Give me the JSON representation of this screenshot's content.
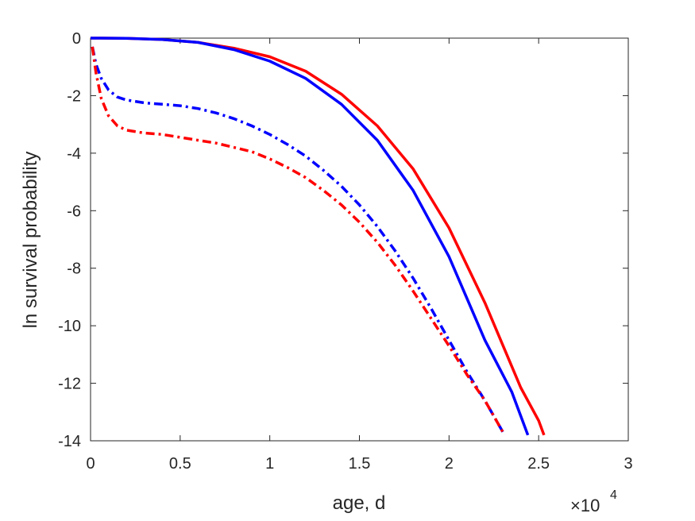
{
  "chart_data": {
    "type": "line",
    "title": "",
    "xlabel": "age, d",
    "ylabel": "ln survival probability",
    "x_multiplier_label": "×10",
    "x_multiplier_exponent": "4",
    "xlim": [
      0,
      30000
    ],
    "ylim": [
      -14,
      0
    ],
    "xticks": [
      0,
      5000,
      10000,
      15000,
      20000,
      25000,
      30000
    ],
    "xtick_labels": [
      "0",
      "0.5",
      "1",
      "1.5",
      "2",
      "2.5",
      "3"
    ],
    "yticks": [
      0,
      -2,
      -4,
      -6,
      -8,
      -10,
      -12,
      -14
    ],
    "ytick_labels": [
      "0",
      "-2",
      "-4",
      "-6",
      "-8",
      "-10",
      "-12",
      "-14"
    ],
    "grid": false,
    "legend": "none",
    "series": [
      {
        "color": "#ff0000",
        "style": "solid",
        "x": [
          0,
          2000,
          4000,
          6000,
          8000,
          10000,
          12000,
          14000,
          16000,
          18000,
          20000,
          22000,
          24000,
          25000,
          25300
        ],
        "y": [
          0,
          -0.005,
          -0.05,
          -0.15,
          -0.35,
          -0.65,
          -1.15,
          -1.95,
          -3.05,
          -4.55,
          -6.6,
          -9.2,
          -12.15,
          -13.3,
          -13.8
        ]
      },
      {
        "color": "#0000ff",
        "style": "solid",
        "x": [
          0,
          2000,
          4000,
          6000,
          8000,
          10000,
          12000,
          14000,
          16000,
          18000,
          20000,
          22000,
          23500,
          24400
        ],
        "y": [
          0,
          -0.005,
          -0.05,
          -0.15,
          -0.4,
          -0.8,
          -1.4,
          -2.3,
          -3.55,
          -5.3,
          -7.6,
          -10.5,
          -12.3,
          -13.8
        ]
      },
      {
        "color": "#0000ff",
        "style": "dashdot",
        "x": [
          100,
          300,
          600,
          1000,
          1500,
          2000,
          3000,
          4000,
          5000,
          6000,
          7000,
          8000,
          9000,
          10000,
          11000,
          12000,
          13000,
          14000,
          15000,
          16000,
          17000,
          18000,
          19000,
          20000,
          21000,
          22000,
          23100
        ],
        "y": [
          -0.3,
          -0.9,
          -1.4,
          -1.8,
          -2.05,
          -2.15,
          -2.25,
          -2.3,
          -2.35,
          -2.45,
          -2.6,
          -2.8,
          -3.05,
          -3.35,
          -3.7,
          -4.1,
          -4.6,
          -5.15,
          -5.8,
          -6.55,
          -7.4,
          -8.35,
          -9.4,
          -10.5,
          -11.6,
          -12.6,
          -13.8
        ]
      },
      {
        "color": "#ff0000",
        "style": "dashdot",
        "x": [
          100,
          300,
          600,
          1000,
          1500,
          2000,
          3000,
          4000,
          5000,
          6000,
          7000,
          8000,
          9000,
          10000,
          11000,
          12000,
          13000,
          14000,
          15000,
          16000,
          17000,
          18000,
          19000,
          20000,
          21000,
          22000,
          23100
        ],
        "y": [
          -0.3,
          -1.2,
          -2.1,
          -2.7,
          -3.05,
          -3.2,
          -3.3,
          -3.35,
          -3.45,
          -3.55,
          -3.65,
          -3.8,
          -3.95,
          -4.2,
          -4.5,
          -4.85,
          -5.3,
          -5.8,
          -6.4,
          -7.1,
          -7.9,
          -8.8,
          -9.75,
          -10.7,
          -11.7,
          -12.6,
          -13.8
        ]
      }
    ]
  }
}
